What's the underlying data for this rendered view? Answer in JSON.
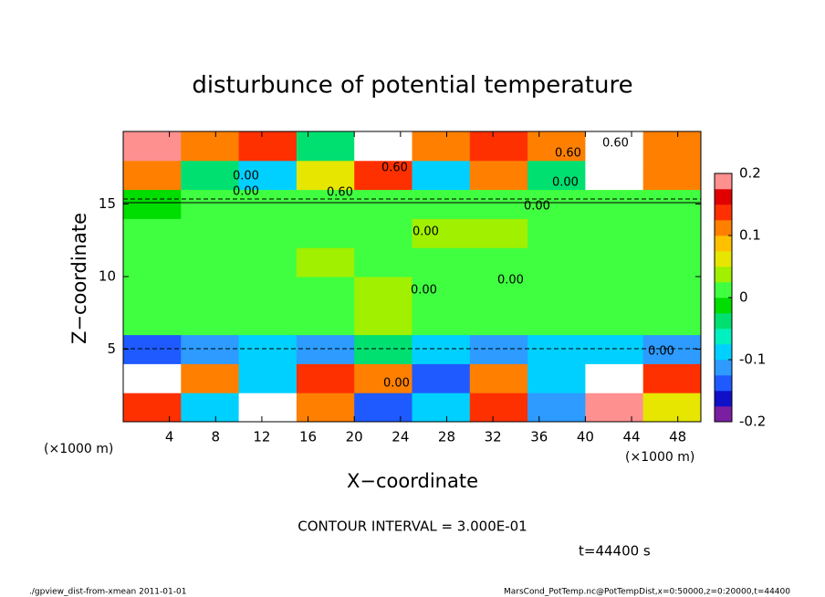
{
  "chart_data": {
    "type": "heatmap",
    "title": "disturbunce of potential temperature",
    "xlabel": "X−coordinate",
    "ylabel": "Z−coordinate",
    "x_unit": "(×1000 m)",
    "z_unit": "(×1000 m)",
    "xlim": [
      0,
      50
    ],
    "ylim": [
      0,
      20
    ],
    "xticks": [
      4,
      8,
      12,
      16,
      20,
      24,
      28,
      32,
      36,
      40,
      44,
      48
    ],
    "yticks": [
      5,
      10,
      15
    ],
    "xbins": [
      0,
      5,
      10,
      15,
      20,
      25,
      30,
      35,
      40,
      45,
      50
    ],
    "zbins": [
      0,
      2,
      4,
      6,
      8,
      10,
      12,
      14,
      16,
      18,
      20
    ],
    "z": [
      [
        0.15,
        -0.1,
        0.2,
        0.1,
        -0.15,
        -0.1,
        0.15,
        -0.12,
        0.18,
        0.05
      ],
      [
        0.2,
        0.1,
        -0.1,
        0.15,
        0.1,
        -0.15,
        0.12,
        -0.1,
        0.2,
        0.15
      ],
      [
        -0.15,
        -0.12,
        -0.1,
        -0.12,
        -0.05,
        -0.1,
        -0.12,
        -0.08,
        -0.1,
        -0.12
      ],
      [
        0.01,
        0.02,
        0,
        0.01,
        0.03,
        0,
        0.02,
        0,
        0.01,
        0
      ],
      [
        0,
        0.01,
        0,
        0.02,
        0.03,
        0.01,
        0,
        0,
        0.01,
        0
      ],
      [
        0,
        0,
        0.01,
        0.03,
        0.02,
        0.02,
        0.01,
        0,
        0,
        0
      ],
      [
        0,
        0,
        0,
        0.01,
        0.01,
        0.04,
        0.03,
        0.02,
        0.01,
        0
      ],
      [
        -0.01,
        0,
        0,
        0,
        0,
        0.01,
        0.01,
        0,
        0,
        0
      ],
      [
        0.1,
        -0.05,
        -0.08,
        0.05,
        0.15,
        -0.1,
        0.12,
        -0.05,
        0.2,
        0.1
      ],
      [
        0.18,
        0.12,
        0.15,
        -0.05,
        0.2,
        0.1,
        0.15,
        0.1,
        0.2,
        0.12
      ]
    ],
    "clim": [
      -0.2,
      0.2
    ],
    "cticks": [
      -0.2,
      -0.1,
      0,
      0.1,
      0.2
    ],
    "colormap": [
      "#7b1fa2",
      "#1010c8",
      "#1e5aff",
      "#2d9bff",
      "#00d0ff",
      "#00f0c0",
      "#00e070",
      "#00dd00",
      "#40ff40",
      "#a0f000",
      "#e6e600",
      "#ffc000",
      "#ff8000",
      "#ff3000",
      "#e00000",
      "#ff9090"
    ],
    "contour_labels": [
      "0.60",
      "0.60",
      "0.60",
      "0.00",
      "0.00",
      "0.60",
      "0.00",
      "0.00",
      "0.00",
      "0.00",
      "0.00",
      "0.00",
      "0.00"
    ],
    "contour_interval": "CONTOUR INTERVAL = 3.000E-01",
    "time": "t=44400 s",
    "footer_left": "./gpview_dist-from-xmean  2011-01-01",
    "footer_right": "MarsCond_PotTemp.nc@PotTempDist,x=0:50000,z=0:20000,t=44400"
  }
}
